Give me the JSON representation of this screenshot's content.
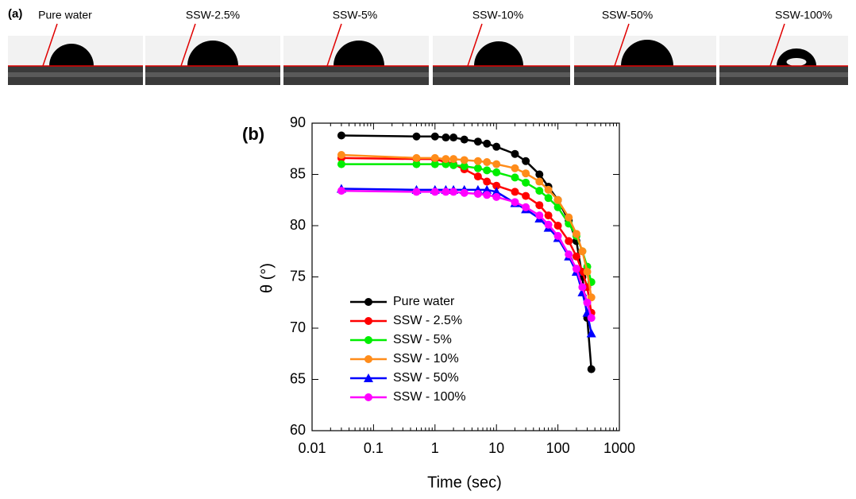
{
  "panel_a": {
    "label": "(a)",
    "images": [
      "Pure water",
      "SSW-2.5%",
      "SSW-5%",
      "SSW-10%",
      "SSW-50%",
      "SSW-100%"
    ]
  },
  "chart_data": {
    "type": "line",
    "panel_label": "(b)",
    "x_label": "Time (sec)",
    "y_label": "θ (°)",
    "x": [
      0.03,
      0.5,
      1,
      1.5,
      2,
      3,
      5,
      7,
      10,
      20,
      30,
      50,
      70,
      100,
      150,
      200,
      250,
      300,
      350
    ],
    "xlim": [
      0.01,
      1000
    ],
    "xticks": [
      0.01,
      0.1,
      1,
      10,
      100,
      1000
    ],
    "xscale": "log",
    "ylim": [
      60,
      90
    ],
    "yticks": [
      60,
      65,
      70,
      75,
      80,
      85,
      90
    ],
    "grid": false,
    "legend": "lower left",
    "series": [
      {
        "name": "Pure water",
        "color": "#000000",
        "marker": "circle",
        "values": [
          88.8,
          88.7,
          88.7,
          88.6,
          88.6,
          88.4,
          88.2,
          88.0,
          87.7,
          87.0,
          86.3,
          85.0,
          83.8,
          82.5,
          80.5,
          78.5,
          75,
          71,
          66
        ]
      },
      {
        "name": "SSW - 2.5%",
        "color": "#ff0000",
        "marker": "circle",
        "values": [
          86.6,
          86.5,
          86.5,
          86.2,
          86.0,
          85.5,
          84.8,
          84.3,
          83.9,
          83.3,
          82.9,
          82.0,
          81.0,
          80.0,
          78.5,
          77,
          75.5,
          74,
          71.5
        ]
      },
      {
        "name": "SSW - 5%",
        "color": "#00ee00",
        "marker": "circle",
        "values": [
          86.0,
          86.0,
          86.0,
          86.0,
          85.9,
          85.8,
          85.6,
          85.4,
          85.2,
          84.7,
          84.2,
          83.4,
          82.7,
          81.8,
          80.2,
          79,
          77.5,
          76,
          74.5
        ]
      },
      {
        "name": "SSW - 10%",
        "color": "#ff8c1a",
        "marker": "circle",
        "values": [
          86.9,
          86.6,
          86.6,
          86.5,
          86.5,
          86.4,
          86.3,
          86.2,
          86.0,
          85.6,
          85.1,
          84.3,
          83.5,
          82.5,
          80.8,
          79.2,
          77.5,
          75.5,
          73
        ]
      },
      {
        "name": "SSW - 50%",
        "color": "#0000ff",
        "marker": "triangle",
        "values": [
          83.6,
          83.5,
          83.5,
          83.5,
          83.5,
          83.5,
          83.5,
          83.5,
          83.3,
          82.2,
          81.6,
          80.7,
          79.8,
          78.8,
          77.0,
          75.5,
          73.5,
          71.5,
          69.5
        ]
      },
      {
        "name": "SSW - 100%",
        "color": "#ff00ff",
        "marker": "circle",
        "values": [
          83.4,
          83.3,
          83.3,
          83.3,
          83.3,
          83.2,
          83.1,
          83.0,
          82.8,
          82.3,
          81.8,
          81.0,
          80.1,
          79.0,
          77.2,
          75.8,
          74,
          72.5,
          71
        ]
      }
    ]
  }
}
